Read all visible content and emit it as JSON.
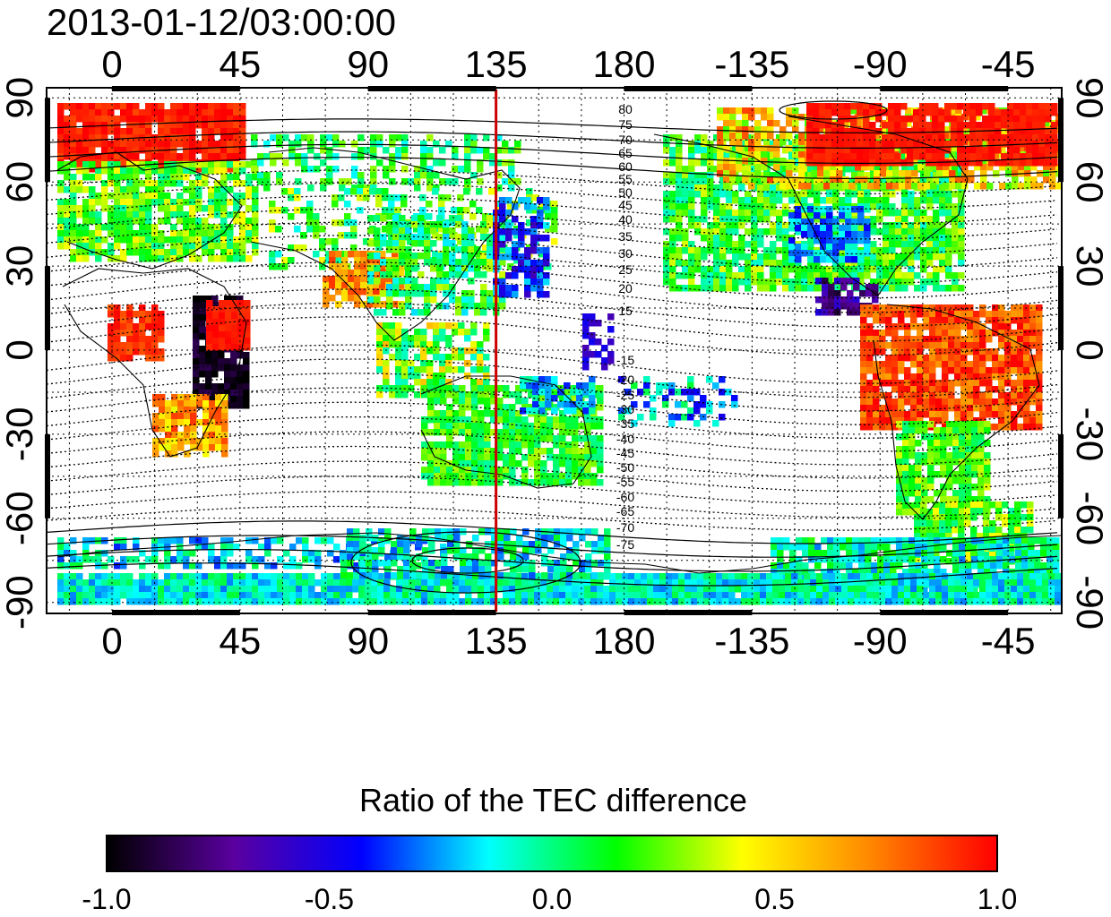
{
  "timestamp": "2013-01-12/03:00:00",
  "map": {
    "x_ticks_top": [
      "0",
      "45",
      "90",
      "135",
      "180",
      "-135",
      "-90",
      "-45"
    ],
    "x_ticks_bottom": [
      "0",
      "45",
      "90",
      "135",
      "180",
      "-135",
      "-90",
      "-45"
    ],
    "y_ticks_left": [
      "90",
      "60",
      "30",
      "0",
      "-30",
      "-60",
      "-90"
    ],
    "y_ticks_right": [
      "90",
      "60",
      "30",
      "0",
      "-30",
      "-60",
      "-90"
    ],
    "marker_longitude": 135,
    "marker_color": "#cc0000",
    "contour_labels_north": [
      "80",
      "75",
      "70",
      "65",
      "60",
      "55",
      "50",
      "45",
      "40",
      "35",
      "30",
      "25",
      "20",
      "15"
    ],
    "contour_labels_south": [
      "-15",
      "-20",
      "-25",
      "-30",
      "-35",
      "-40",
      "-45",
      "-50",
      "-55",
      "-60",
      "-65",
      "-70",
      "-75"
    ]
  },
  "colorbar": {
    "title": "Ratio of the TEC difference",
    "ticks": [
      "-1.0",
      "-0.5",
      "0.0",
      "0.5",
      "1.0"
    ],
    "stops": [
      "#000000",
      "#5a00a0",
      "#0000ff",
      "#00ffff",
      "#00ff00",
      "#ffff00",
      "#ff8800",
      "#ff0000"
    ]
  }
}
